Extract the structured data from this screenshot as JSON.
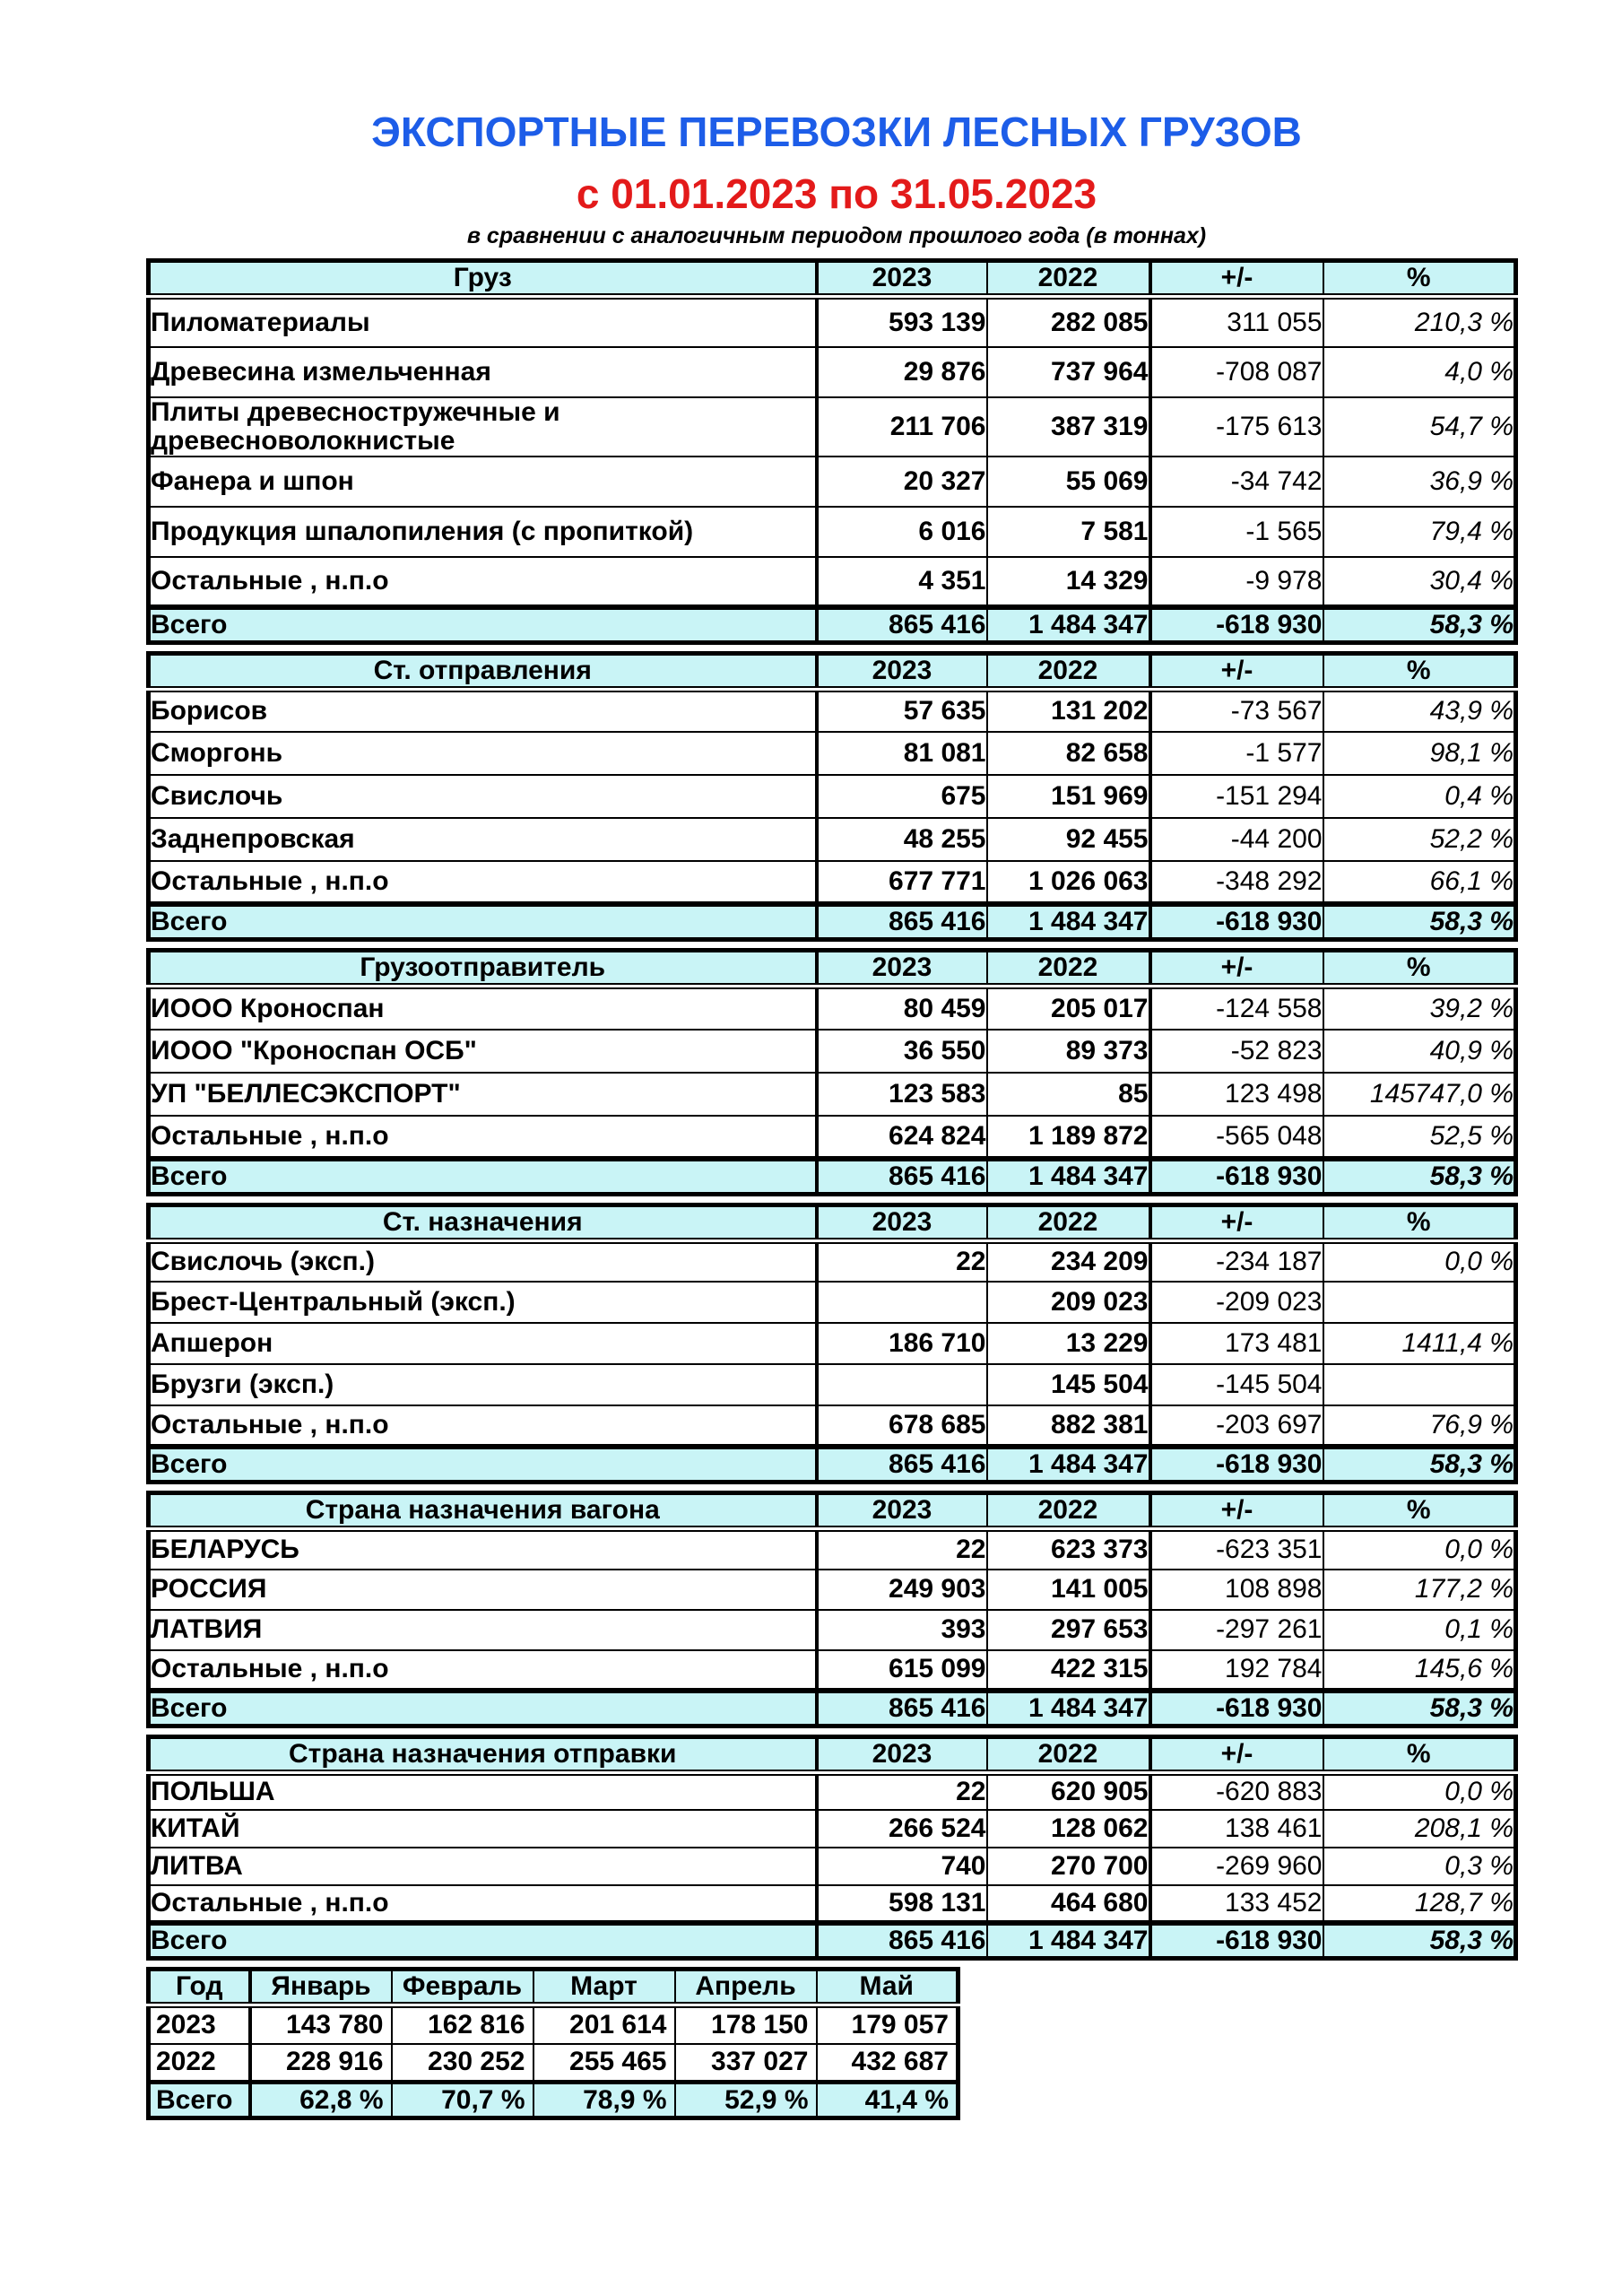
{
  "header": {
    "title": "ЭКСПОРТНЫЕ ПЕРЕВОЗКИ ЛЕСНЫХ ГРУЗОВ",
    "period": "с 01.01.2023 по 31.05.2023",
    "note": "в сравнении с аналогичным периодом прошлого года (в тоннах)"
  },
  "colors": {
    "title_blue": "#1d5de8",
    "period_red": "#e31a1a",
    "table_header_bg": "#c9f4f6"
  },
  "columns": [
    "2023",
    "2022",
    "+/-",
    "%"
  ],
  "total_label": "Всего",
  "tables": [
    {
      "key": "cargo",
      "title": "Груз",
      "rows": [
        {
          "label": "Пиломатериалы",
          "y2023": "593 139",
          "y2022": "282 085",
          "delta": "311 055",
          "pct": "210,3 %"
        },
        {
          "label": "Древесина измельченная",
          "y2023": "29 876",
          "y2022": "737 964",
          "delta": "-708 087",
          "pct": "4,0 %"
        },
        {
          "label": "Плиты древесностружечные и древесноволокнистые",
          "y2023": "211 706",
          "y2022": "387 319",
          "delta": "-175 613",
          "pct": "54,7 %"
        },
        {
          "label": "Фанера и шпон",
          "y2023": "20 327",
          "y2022": "55 069",
          "delta": "-34 742",
          "pct": "36,9 %"
        },
        {
          "label": "Продукция шпалопиления (с пропиткой)",
          "y2023": "6 016",
          "y2022": "7 581",
          "delta": "-1 565",
          "pct": "79,4 %"
        },
        {
          "label": "Остальные , н.п.о",
          "y2023": "4 351",
          "y2022": "14 329",
          "delta": "-9 978",
          "pct": "30,4 %"
        }
      ],
      "total": {
        "y2023": "865 416",
        "y2022": "1 484 347",
        "delta": "-618 930",
        "pct": "58,3 %"
      }
    },
    {
      "key": "departure-station",
      "title": "Ст. отправления",
      "rows": [
        {
          "label": "Борисов",
          "y2023": "57 635",
          "y2022": "131 202",
          "delta": "-73 567",
          "pct": "43,9 %"
        },
        {
          "label": "Сморгонь",
          "y2023": "81 081",
          "y2022": "82 658",
          "delta": "-1 577",
          "pct": "98,1 %"
        },
        {
          "label": "Свислочь",
          "y2023": "675",
          "y2022": "151 969",
          "delta": "-151 294",
          "pct": "0,4 %"
        },
        {
          "label": "Заднепровская",
          "y2023": "48 255",
          "y2022": "92 455",
          "delta": "-44 200",
          "pct": "52,2 %"
        },
        {
          "label": "Остальные , н.п.о",
          "y2023": "677 771",
          "y2022": "1 026 063",
          "delta": "-348 292",
          "pct": "66,1 %"
        }
      ],
      "total": {
        "y2023": "865 416",
        "y2022": "1 484 347",
        "delta": "-618 930",
        "pct": "58,3 %"
      }
    },
    {
      "key": "shipper",
      "title": "Грузоотправитель",
      "rows": [
        {
          "label": "ИООО Кроноспан",
          "y2023": "80 459",
          "y2022": "205 017",
          "delta": "-124 558",
          "pct": "39,2 %"
        },
        {
          "label": "ИООО \"Кроноспан ОСБ\"",
          "y2023": "36 550",
          "y2022": "89 373",
          "delta": "-52 823",
          "pct": "40,9 %"
        },
        {
          "label": "УП \"БЕЛЛЕСЭКСПОРТ\"",
          "y2023": "123 583",
          "y2022": "85",
          "delta": "123 498",
          "pct": "145747,0 %"
        },
        {
          "label": "Остальные , н.п.о",
          "y2023": "624 824",
          "y2022": "1 189 872",
          "delta": "-565 048",
          "pct": "52,5 %"
        }
      ],
      "total": {
        "y2023": "865 416",
        "y2022": "1 484 347",
        "delta": "-618 930",
        "pct": "58,3 %"
      }
    },
    {
      "key": "destination-station",
      "title": "Ст. назначения",
      "rows": [
        {
          "label": "Свислочь (эксп.)",
          "y2023": "22",
          "y2022": "234 209",
          "delta": "-234 187",
          "pct": "0,0 %"
        },
        {
          "label": "Брест-Центральный (эксп.)",
          "y2023": "",
          "y2022": "209 023",
          "delta": "-209 023",
          "pct": ""
        },
        {
          "label": "Апшерон",
          "y2023": "186 710",
          "y2022": "13 229",
          "delta": "173 481",
          "pct": "1411,4 %"
        },
        {
          "label": "Брузги (эксп.)",
          "y2023": "",
          "y2022": "145 504",
          "delta": "-145 504",
          "pct": ""
        },
        {
          "label": "Остальные , н.п.о",
          "y2023": "678 685",
          "y2022": "882 381",
          "delta": "-203 697",
          "pct": "76,9 %"
        }
      ],
      "total": {
        "y2023": "865 416",
        "y2022": "1 484 347",
        "delta": "-618 930",
        "pct": "58,3 %"
      }
    },
    {
      "key": "wagon-destination-country",
      "title": "Страна назначения вагона",
      "rows": [
        {
          "label": "БЕЛАРУСЬ",
          "y2023": "22",
          "y2022": "623 373",
          "delta": "-623 351",
          "pct": "0,0 %"
        },
        {
          "label": "РОССИЯ",
          "y2023": "249 903",
          "y2022": "141 005",
          "delta": "108 898",
          "pct": "177,2 %"
        },
        {
          "label": "ЛАТВИЯ",
          "y2023": "393",
          "y2022": "297 653",
          "delta": "-297 261",
          "pct": "0,1 %"
        },
        {
          "label": "Остальные , н.п.о",
          "y2023": "615 099",
          "y2022": "422 315",
          "delta": "192 784",
          "pct": "145,6 %"
        }
      ],
      "total": {
        "y2023": "865 416",
        "y2022": "1 484 347",
        "delta": "-618 930",
        "pct": "58,3 %"
      }
    },
    {
      "key": "shipment-destination-country",
      "title": "Страна назначения отправки",
      "rows": [
        {
          "label": "ПОЛЬША",
          "y2023": "22",
          "y2022": "620 905",
          "delta": "-620 883",
          "pct": "0,0 %"
        },
        {
          "label": "КИТАЙ",
          "y2023": "266 524",
          "y2022": "128 062",
          "delta": "138 461",
          "pct": "208,1 %"
        },
        {
          "label": "ЛИТВА",
          "y2023": "740",
          "y2022": "270 700",
          "delta": "-269 960",
          "pct": "0,3 %"
        },
        {
          "label": "Остальные , н.п.о",
          "y2023": "598 131",
          "y2022": "464 680",
          "delta": "133 452",
          "pct": "128,7 %"
        }
      ],
      "total": {
        "y2023": "865 416",
        "y2022": "1 484 347",
        "delta": "-618 930",
        "pct": "58,3 %"
      }
    }
  ],
  "months": {
    "headers": [
      "Год",
      "Январь",
      "Февраль",
      "Март",
      "Апрель",
      "Май"
    ],
    "rows": [
      {
        "label": "2023",
        "values": [
          "143 780",
          "162 816",
          "201 614",
          "178 150",
          "179 057"
        ]
      },
      {
        "label": "2022",
        "values": [
          "228 916",
          "230 252",
          "255 465",
          "337 027",
          "432 687"
        ]
      }
    ],
    "total": {
      "label": "Всего",
      "values": [
        "62,8 %",
        "70,7 %",
        "78,9 %",
        "52,9 %",
        "41,4 %"
      ]
    }
  }
}
